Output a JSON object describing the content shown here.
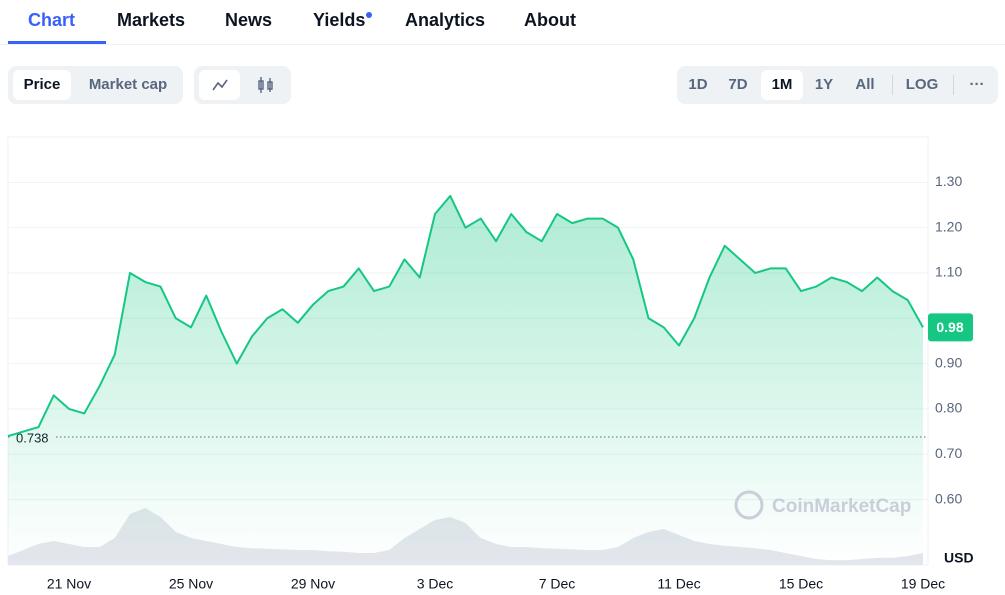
{
  "nav": {
    "tabs": [
      "Chart",
      "Markets",
      "News",
      "Yields",
      "Analytics",
      "About"
    ]
  },
  "toolbar": {
    "metric_buttons": [
      "Price",
      "Market cap"
    ],
    "range_buttons": [
      "1D",
      "7D",
      "1M",
      "1Y",
      "All"
    ],
    "scale_button": "LOG",
    "more_button": "···"
  },
  "chart_data": {
    "type": "line",
    "x": [
      null,
      null,
      null,
      null,
      "21 Nov",
      null,
      null,
      null,
      null,
      null,
      null,
      null,
      "25 Nov",
      null,
      null,
      null,
      null,
      null,
      null,
      null,
      "29 Nov",
      null,
      null,
      null,
      null,
      null,
      null,
      null,
      "3 Dec",
      null,
      null,
      null,
      null,
      null,
      null,
      null,
      "7 Dec",
      null,
      null,
      null,
      null,
      null,
      null,
      null,
      "11 Dec",
      null,
      null,
      null,
      null,
      null,
      null,
      null,
      "15 Dec",
      null,
      null,
      null,
      null,
      null,
      null,
      null,
      "19 Dec"
    ],
    "xticks": [
      4,
      12,
      20,
      28,
      36,
      44,
      52,
      60
    ],
    "series": [
      {
        "name": "Price",
        "color": "#16c784",
        "values": [
          0.74,
          0.75,
          0.76,
          0.83,
          0.8,
          0.79,
          0.85,
          0.92,
          1.1,
          1.08,
          1.07,
          1.0,
          0.98,
          1.05,
          0.97,
          0.9,
          0.96,
          1.0,
          1.02,
          0.99,
          1.03,
          1.06,
          1.07,
          1.11,
          1.06,
          1.07,
          1.13,
          1.09,
          1.23,
          1.27,
          1.2,
          1.22,
          1.17,
          1.23,
          1.19,
          1.17,
          1.23,
          1.21,
          1.22,
          1.22,
          1.2,
          1.13,
          1.0,
          0.98,
          0.94,
          1.0,
          1.09,
          1.16,
          1.13,
          1.1,
          1.11,
          1.11,
          1.06,
          1.07,
          1.09,
          1.08,
          1.06,
          1.09,
          1.06,
          1.04,
          0.98
        ]
      }
    ],
    "volume": {
      "color": "#e3e6ec",
      "values": [
        15,
        25,
        35,
        40,
        35,
        30,
        30,
        45,
        85,
        95,
        80,
        55,
        45,
        40,
        35,
        30,
        28,
        27,
        26,
        25,
        25,
        23,
        22,
        20,
        20,
        25,
        45,
        60,
        75,
        80,
        70,
        45,
        35,
        30,
        30,
        28,
        27,
        26,
        25,
        25,
        30,
        45,
        55,
        60,
        50,
        40,
        35,
        32,
        30,
        28,
        25,
        20,
        15,
        10,
        8,
        8,
        10,
        12,
        12,
        15,
        20
      ]
    },
    "ylim": [
      0.46,
      1.4
    ],
    "yticks": [
      {
        "value": 0.6,
        "label": "0.60"
      },
      {
        "value": 0.7,
        "label": "0.70"
      },
      {
        "value": 0.8,
        "label": "0.80"
      },
      {
        "value": 0.9,
        "label": "0.90"
      },
      {
        "value": 1.0,
        "label": ""
      },
      {
        "value": 1.1,
        "label": "1.10"
      },
      {
        "value": 1.2,
        "label": "1.20"
      },
      {
        "value": 1.3,
        "label": "1.30"
      }
    ],
    "grid": true,
    "reference": {
      "value": 0.738,
      "label": "0.738"
    },
    "last_price": 0.98,
    "y_label": "USD",
    "watermark": "CoinMarketCap"
  }
}
